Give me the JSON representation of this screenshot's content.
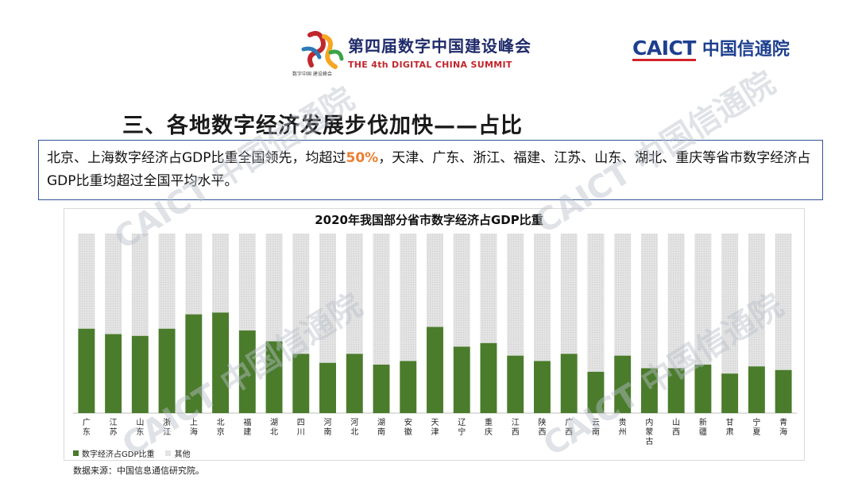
{
  "header": {
    "summit_cn": "第四届数字中国建设峰会",
    "summit_en": "THE 4th DIGITAL CHINA SUMMIT",
    "summit_sub": "数字中国 建设峰会",
    "caict_en": "CAICT",
    "caict_cn": "中国信通院"
  },
  "slide_title": "三、各地数字经济发展步伐加快——占比",
  "summary": {
    "before": "北京、上海数字经济占GDP比重全国领先，均超过",
    "highlight": "50%",
    "after": "，天津、广东、浙江、福建、江苏、山东、湖北、重庆等省市数字经济占GDP比重均超过全国平均水平。"
  },
  "watermark_text": "CAICT 中国信通院",
  "colors": {
    "series_main": "#4a7c2c",
    "series_other": "#e3e3e3",
    "highlight": "#ed7d31",
    "border": "#2f5597"
  },
  "chart_data": {
    "type": "bar",
    "stacked": true,
    "title": "2020年我国部分省市数字经济占GDP比重",
    "categories": [
      "广东",
      "江苏",
      "山东",
      "浙江",
      "上海",
      "北京",
      "福建",
      "湖北",
      "四川",
      "河南",
      "河北",
      "湖南",
      "安徽",
      "天津",
      "辽宁",
      "重庆",
      "江西",
      "陕西",
      "广西",
      "云南",
      "贵州",
      "内蒙古",
      "山西",
      "新疆",
      "甘肃",
      "宁夏",
      "青海"
    ],
    "series": [
      {
        "name": "数字经济占GDP比重",
        "values": [
          47,
          44,
          43,
          47,
          55,
          56,
          46,
          40,
          33,
          28,
          33,
          27,
          29,
          48,
          37,
          39,
          32,
          29,
          33,
          23,
          32,
          25,
          25,
          27,
          22,
          26,
          24
        ]
      },
      {
        "name": "其他",
        "values": [
          53,
          56,
          57,
          53,
          45,
          44,
          54,
          60,
          67,
          72,
          67,
          73,
          71,
          52,
          63,
          61,
          68,
          71,
          67,
          77,
          68,
          75,
          75,
          73,
          78,
          74,
          76
        ]
      }
    ],
    "ylim": [
      0,
      100
    ],
    "legend_position": "bottom-left"
  },
  "source": "数据来源：中国信息通信研究院。"
}
